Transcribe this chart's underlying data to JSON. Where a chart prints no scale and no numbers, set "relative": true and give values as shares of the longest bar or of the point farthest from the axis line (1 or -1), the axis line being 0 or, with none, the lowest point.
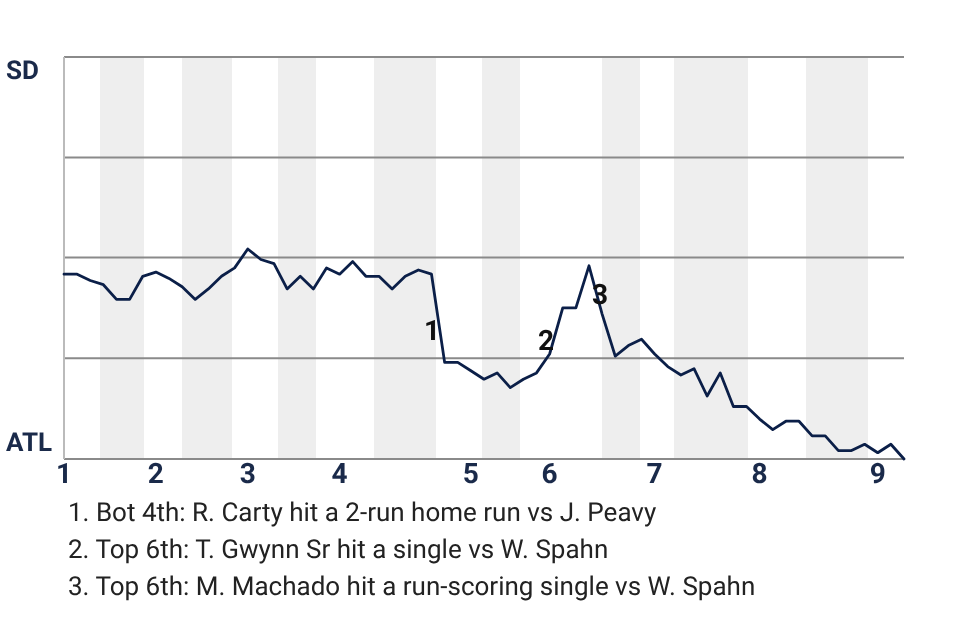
{
  "chart_data": {
    "type": "line",
    "relative": true,
    "categories": [
      "1",
      null,
      null,
      null,
      null,
      null,
      null,
      "2",
      null,
      null,
      null,
      null,
      null,
      null,
      "3",
      null,
      null,
      null,
      null,
      null,
      null,
      "4",
      null,
      null,
      null,
      null,
      null,
      null,
      null,
      null,
      null,
      "5",
      null,
      null,
      null,
      null,
      null,
      "6",
      null,
      null,
      null,
      null,
      null,
      null,
      null,
      "7",
      null,
      null,
      null,
      null,
      null,
      null,
      null,
      "8",
      null,
      null,
      null,
      null,
      null,
      null,
      null,
      null,
      "9",
      null,
      null
    ],
    "ref_lines": [
      {
        "axis": "y",
        "value": 0.96,
        "color": "#8a8a8a"
      },
      {
        "axis": "y",
        "value": 0.48,
        "color": "#8a8a8a"
      }
    ],
    "line_style": "solid",
    "marker": "none",
    "series": [
      {
        "color": "#0b1f48",
        "values": [
          0.88,
          0.88,
          0.85,
          0.83,
          0.76,
          0.76,
          0.87,
          0.89,
          0.86,
          0.82,
          0.76,
          0.81,
          0.87,
          0.91,
          1,
          0.95,
          0.93,
          0.81,
          0.87,
          0.81,
          0.91,
          0.88,
          0.94,
          0.87,
          0.87,
          0.81,
          0.87,
          0.9,
          0.88,
          0.46,
          0.46,
          0.42,
          0.38,
          0.41,
          0.34,
          0.38,
          0.41,
          0.5,
          0.72,
          0.72,
          0.92,
          0.69,
          0.49,
          0.54,
          0.57,
          0.5,
          0.44,
          0.4,
          0.43,
          0.3,
          0.41,
          0.25,
          0.25,
          0.19,
          0.14,
          0.18,
          0.18,
          0.11,
          0.11,
          0.04,
          0.04,
          0.07,
          0.03,
          0.07,
          0
        ]
      }
    ],
    "annotations": [
      "SD",
      "ATL",
      "1",
      "2",
      "3",
      "1. Bot 4th: R. Carty hit a 2-run home run vs J. Peavy",
      "2. Top 6th: T. Gwynn Sr hit a single vs W. Spahn",
      "3. Top 6th: M. Machado hit a run-scoring single vs W. Spahn"
    ]
  }
}
